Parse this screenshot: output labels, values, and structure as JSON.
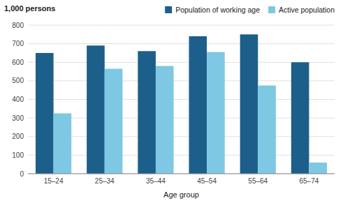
{
  "chart_data": {
    "type": "bar",
    "categories": [
      "15–24",
      "25–34",
      "35–44",
      "45–54",
      "55–64",
      "65–74"
    ],
    "series": [
      {
        "name": "Population of working age",
        "color": "#1c5f8a",
        "values": [
          650,
          690,
          660,
          740,
          750,
          600
        ]
      },
      {
        "name": "Active population",
        "color": "#7ec8e3",
        "values": [
          325,
          565,
          580,
          655,
          475,
          60
        ]
      }
    ],
    "xlabel": "Age group",
    "ylabel": "1,000 persons",
    "ylim": [
      0,
      800
    ],
    "yticks": [
      0,
      100,
      200,
      300,
      400,
      500,
      600,
      700,
      800
    ],
    "grid": true,
    "legend": "upper right"
  }
}
